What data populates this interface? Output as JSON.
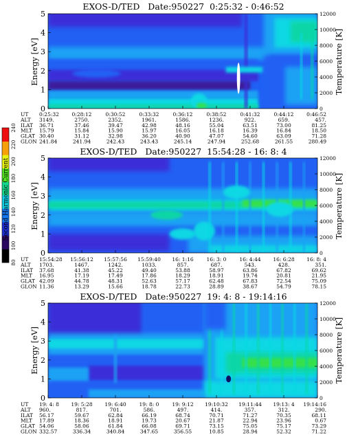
{
  "chart_data": [
    {
      "type": "heatmap",
      "title": "EXOS-D/TED   Date:950227  0:25:32 - 0:46:52",
      "ylabel": "Energy [eV]",
      "y2label": "Temperature [K]",
      "ylim": [
        0,
        5
      ],
      "y2lim": [
        0,
        12000
      ],
      "yticks": [
        "0",
        "1",
        "2",
        "3",
        "4",
        "5"
      ],
      "y2ticks": [
        "0",
        "2000",
        "4000",
        "6000",
        "8000",
        "10000",
        "12000"
      ],
      "rows": [
        {
          "label": "UT",
          "values": [
            "0:25:32",
            "0:28:12",
            "0:30:52",
            "0:33:32",
            "0:36:12",
            "0:38:52",
            "0:41:32",
            "0:44:12",
            "0:46:52"
          ]
        },
        {
          "label": "ALT",
          "values": [
            "3149.",
            "2750.",
            "2352.",
            "1961.",
            "1586.",
            "1236.",
            "922.",
            "659.",
            "457."
          ]
        },
        {
          "label": "ILAT",
          "values": [
            "36.71",
            "37.46",
            "39.47",
            "42.98",
            "48.16",
            "55.04",
            "63.51",
            "73.00",
            "81.25"
          ]
        },
        {
          "label": "MLT",
          "values": [
            "15.79",
            "15.84",
            "15.90",
            "15.97",
            "16.05",
            "16.18",
            "16.39",
            "16.84",
            "18.50"
          ]
        },
        {
          "label": "GLAT",
          "values": [
            "30.40",
            "31.12",
            "32.98",
            "36.20",
            "40.90",
            "47.07",
            "54.60",
            "63.09",
            "71.28"
          ]
        },
        {
          "label": "GLON",
          "values": [
            "241.84",
            "241.94",
            "242.43",
            "243.43",
            "245.14",
            "247.94",
            "252.68",
            "261.55",
            "280.49"
          ]
        }
      ]
    },
    {
      "type": "heatmap",
      "title": "EXOS-D/TED   Date:950227  15:54:28 - 16: 8: 4",
      "ylabel": "Energy [eV]",
      "y2label": "Temperature [K]",
      "ylim": [
        0,
        5
      ],
      "y2lim": [
        0,
        12000
      ],
      "yticks": [
        "0",
        "1",
        "2",
        "3",
        "4",
        "5"
      ],
      "y2ticks": [
        "0",
        "2000",
        "4000",
        "6000",
        "8000",
        "10000",
        "12000"
      ],
      "rows": [
        {
          "label": "UT",
          "values": [
            "15:54:28",
            "15:56:12",
            "15:57:56",
            "15:59:40",
            "16: 1:16",
            "16: 3: 0",
            "16: 4:44",
            "16: 6:28",
            "16: 8: 4"
          ]
        },
        {
          "label": "ALT",
          "values": [
            "1703.",
            "1467.",
            "1242.",
            "1033.",
            "857.",
            "687.",
            "543.",
            "428.",
            "351."
          ]
        },
        {
          "label": "ILAT",
          "values": [
            "37.68",
            "41.38",
            "45.22",
            "49.40",
            "53.88",
            "58.97",
            "63.86",
            "67.82",
            "69.62"
          ]
        },
        {
          "label": "MLT",
          "values": [
            "16.95",
            "17.19",
            "17.49",
            "17.86",
            "18.29",
            "18.91",
            "19.74",
            "20.81",
            "21.95"
          ]
        },
        {
          "label": "GLAT",
          "values": [
            "42.09",
            "44.78",
            "48.31",
            "52.63",
            "57.17",
            "62.48",
            "67.83",
            "72.54",
            "75.09"
          ]
        },
        {
          "label": "GLON",
          "values": [
            "11.36",
            "13.29",
            "15.66",
            "18.78",
            "22.73",
            "28.89",
            "38.67",
            "54.79",
            "78.15"
          ]
        }
      ]
    },
    {
      "type": "heatmap",
      "title": "EXOS-D/TED   Date:950227  19: 4: 8 - 19:14:16",
      "ylabel": "Energy [eV]",
      "y2label": "Temperature [K]",
      "ylim": [
        0,
        5
      ],
      "y2lim": [
        0,
        12000
      ],
      "yticks": [
        "0",
        "1",
        "2",
        "3",
        "4",
        "5"
      ],
      "y2ticks": [
        "0",
        "2000",
        "4000",
        "6000",
        "8000",
        "10000",
        "12000"
      ],
      "rows": [
        {
          "label": "UT",
          "values": [
            "19: 4: 8",
            "19: 5:28",
            "19: 6:40",
            "19: 8: 0",
            "19: 9:12",
            "19:10:32",
            "19:11:44",
            "19:13: 4",
            "19:14:16"
          ]
        },
        {
          "label": "ALT",
          "values": [
            "960.",
            "817.",
            "701.",
            "586.",
            "497.",
            "414.",
            "357.",
            "312.",
            "290."
          ]
        },
        {
          "label": "ILAT",
          "values": [
            "56.17",
            "59.67",
            "62.84",
            "66.19",
            "68.74",
            "70.71",
            "71.27",
            "70.35",
            "68.11"
          ]
        },
        {
          "label": "MLT",
          "values": [
            "17.89",
            "18.36",
            "18.91",
            "19.73",
            "20.67",
            "21.87",
            "22.94",
            "23.96",
            "0.67"
          ]
        },
        {
          "label": "GLAT",
          "values": [
            "54.06",
            "58.06",
            "61.84",
            "66.08",
            "69.71",
            "73.15",
            "75.05",
            "75.17",
            "73.29"
          ]
        },
        {
          "label": "GLON",
          "values": [
            "332.57",
            "336.34",
            "340.84",
            "347.65",
            "356.55",
            "10.85",
            "28.94",
            "52.32",
            "71.22"
          ]
        }
      ]
    }
  ],
  "colorbar": {
    "label": "Second Harmonic Current",
    "ticks": [
      "80",
      "100",
      "120",
      "140",
      "160",
      "180",
      "200",
      "220",
      "240"
    ],
    "colors": [
      "#000000",
      "#2a0860",
      "#1c2fd0",
      "#1577f0",
      "#0ecfe6",
      "#14d88c",
      "#52e020",
      "#e8f410",
      "#f5a008",
      "#ee1010"
    ]
  },
  "palette": {
    "floor": "#3d1a9c",
    "deep": "#3a2ed8",
    "blue": "#2060f4",
    "sky": "#1ba2f4",
    "cyan": "#10d8e4",
    "teal": "#10d6a6",
    "green": "#34e04c"
  }
}
